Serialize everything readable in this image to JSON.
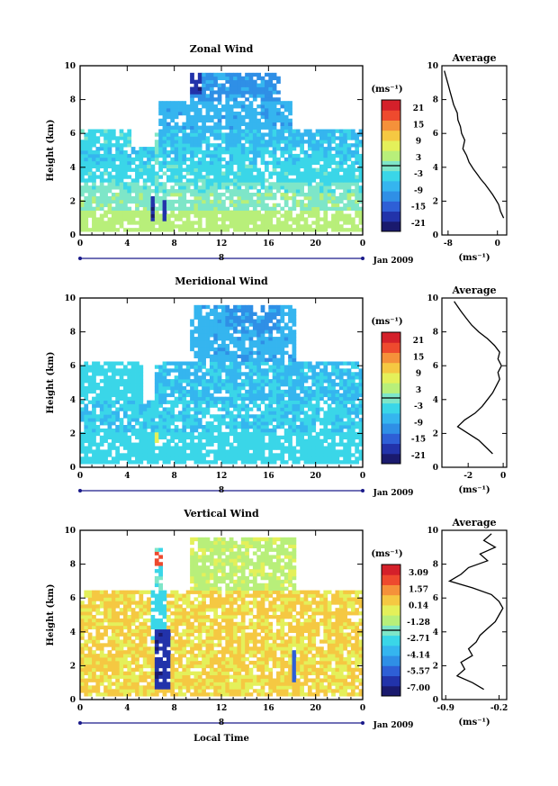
{
  "colors": {
    "bg": "#ffffff",
    "axis": "#000000",
    "contour": "#000000",
    "colormap": [
      "#1a1a6e",
      "#2233aa",
      "#2e5fd6",
      "#2f8fe6",
      "#35b5ef",
      "#3ad6e8",
      "#7ee6c8",
      "#b8ef7a",
      "#e4f05a",
      "#f5c842",
      "#f5913a",
      "#ee4a2e",
      "#d4202a"
    ]
  },
  "chart_data": [
    {
      "type": "heatmap",
      "title": "Zonal Wind",
      "ylabel": "Height (km)",
      "xlabel": "",
      "x_ticks": [
        "0",
        "4",
        "8",
        "12",
        "16",
        "20",
        "0"
      ],
      "xlim": [
        0,
        24
      ],
      "y_ticks": [
        "0",
        "2",
        "4",
        "6",
        "8",
        "10"
      ],
      "ylim": [
        0,
        10
      ],
      "date_tick": "8",
      "date_label": "Jan 2009",
      "colorbar": {
        "unit": "(ms⁻¹)",
        "ticks": [
          "21",
          "15",
          "9",
          "3",
          "-3",
          "-9",
          "-15",
          "-21"
        ],
        "range": [
          -24,
          24
        ]
      },
      "field": {
        "cols": 72,
        "rows": 48,
        "regions": [
          {
            "x": [
              0,
              24
            ],
            "y": [
              0.3,
              1.4
            ],
            "v": 4
          },
          {
            "x": [
              0,
              24
            ],
            "y": [
              1.4,
              2.6
            ],
            "v": 1
          },
          {
            "x": [
              0,
              24
            ],
            "y": [
              2.6,
              3.2
            ],
            "v": -1
          },
          {
            "x": [
              0,
              24
            ],
            "y": [
              3.2,
              4.2
            ],
            "v": -3
          },
          {
            "x": [
              0,
              24
            ],
            "y": [
              4.2,
              5.3
            ],
            "v": -5
          },
          {
            "x": [
              0,
              4.5
            ],
            "y": [
              5.3,
              6.3
            ],
            "v": -3
          },
          {
            "x": [
              6.5,
              24
            ],
            "y": [
              5.3,
              6.3
            ],
            "v": -6
          },
          {
            "x": [
              6.8,
              18
            ],
            "y": [
              6.3,
              8.0
            ],
            "v": -8
          },
          {
            "x": [
              9.5,
              17
            ],
            "y": [
              8.0,
              9.6
            ],
            "v": -10
          },
          {
            "x": [
              9.3,
              10.2
            ],
            "y": [
              8.4,
              9.6
            ],
            "v": -19
          },
          {
            "x": [
              6.0,
              6.5
            ],
            "y": [
              0.8,
              2.4
            ],
            "v": -20
          },
          {
            "x": [
              7.0,
              7.4
            ],
            "y": [
              0.8,
              2.0
            ],
            "v": -18
          },
          {
            "x": [
              6.2,
              6.8
            ],
            "y": [
              2.4,
              6.0
            ],
            "v": -1
          }
        ]
      },
      "profile": {
        "title": "Average",
        "unit": "(ms⁻¹)",
        "x_ticks": [
          "-8",
          "0"
        ],
        "xlim": [
          -9,
          1.5
        ],
        "ylim": [
          0,
          10
        ],
        "x": [
          1.0,
          0.5,
          0.2,
          -0.3,
          -0.8,
          -1.4,
          -2.0,
          -2.7,
          -3.3,
          -3.9,
          -4.6,
          -5.0,
          -5.6,
          -5.3,
          -5.8,
          -6.0,
          -6.4,
          -6.5,
          -7.1,
          -7.4,
          -7.7,
          -8.0,
          -8.3,
          -8.6
        ],
        "y": [
          1.0,
          1.4,
          1.8,
          2.1,
          2.4,
          2.7,
          3.0,
          3.3,
          3.6,
          3.9,
          4.3,
          4.7,
          5.1,
          5.6,
          6.0,
          6.4,
          6.8,
          7.2,
          7.7,
          8.1,
          8.5,
          8.9,
          9.3,
          9.7
        ]
      }
    },
    {
      "type": "heatmap",
      "title": "Meridional Wind",
      "ylabel": "Height (km)",
      "xlabel": "",
      "x_ticks": [
        "0",
        "4",
        "8",
        "12",
        "16",
        "20",
        "0"
      ],
      "xlim": [
        0,
        24
      ],
      "y_ticks": [
        "0",
        "2",
        "4",
        "6",
        "8",
        "10"
      ],
      "ylim": [
        0,
        10
      ],
      "date_tick": "8",
      "date_label": "Jan 2009",
      "colorbar": {
        "unit": "(ms⁻¹)",
        "ticks": [
          "21",
          "15",
          "9",
          "3",
          "-3",
          "-9",
          "-15",
          "-21"
        ],
        "range": [
          -24,
          24
        ]
      },
      "field": {
        "cols": 72,
        "rows": 48,
        "regions": [
          {
            "x": [
              0,
              24
            ],
            "y": [
              0.3,
              2.0
            ],
            "v": -4
          },
          {
            "x": [
              0,
              24
            ],
            "y": [
              2.0,
              4.0
            ],
            "v": -5
          },
          {
            "x": [
              0,
              5.5
            ],
            "y": [
              4.0,
              6.2
            ],
            "v": -4
          },
          {
            "x": [
              6.2,
              24
            ],
            "y": [
              4.0,
              6.2
            ],
            "v": -6
          },
          {
            "x": [
              9.5,
              18.5
            ],
            "y": [
              6.2,
              9.6
            ],
            "v": -8
          },
          {
            "x": [
              12.5,
              17.0
            ],
            "y": [
              8.0,
              9.6
            ],
            "v": -10
          },
          {
            "x": [
              6.3,
              6.8
            ],
            "y": [
              1.5,
              2.0
            ],
            "v": 8
          }
        ]
      },
      "profile": {
        "title": "Average",
        "unit": "(ms⁻¹)",
        "x_ticks": [
          "-2",
          "0"
        ],
        "xlim": [
          -3.5,
          0.2
        ],
        "ylim": [
          0,
          10
        ],
        "x": [
          -0.6,
          -1.0,
          -1.4,
          -2.0,
          -2.6,
          -2.2,
          -1.6,
          -1.2,
          -0.9,
          -0.6,
          -0.4,
          -0.2,
          -0.3,
          -0.1,
          -0.3,
          -0.2,
          -0.5,
          -0.9,
          -1.4,
          -1.8,
          -2.1,
          -2.4,
          -2.6,
          -2.8
        ],
        "y": [
          0.8,
          1.2,
          1.6,
          2.0,
          2.4,
          2.8,
          3.2,
          3.6,
          4.0,
          4.4,
          4.8,
          5.2,
          5.6,
          6.0,
          6.4,
          6.8,
          7.2,
          7.6,
          8.0,
          8.4,
          8.8,
          9.2,
          9.5,
          9.8
        ]
      }
    },
    {
      "type": "heatmap",
      "title": "Vertical Wind",
      "ylabel": "Height (km)",
      "xlabel": "Local Time",
      "x_ticks": [
        "0",
        "4",
        "8",
        "12",
        "16",
        "20",
        "0"
      ],
      "xlim": [
        0,
        24
      ],
      "y_ticks": [
        "0",
        "2",
        "4",
        "6",
        "8",
        "10"
      ],
      "ylim": [
        0,
        10
      ],
      "date_tick": "8",
      "date_label": "Jan 2009",
      "colorbar": {
        "unit": "(ms⁻¹)",
        "ticks": [
          "3.09",
          "1.57",
          "0.14",
          "-1.28",
          "-2.71",
          "-4.14",
          "-5.57",
          "-7.00"
        ],
        "range": [
          -8.0,
          4.0
        ]
      },
      "field": {
        "cols": 72,
        "rows": 48,
        "regions": [
          {
            "x": [
              0,
              24
            ],
            "y": [
              0.3,
              6.4
            ],
            "v": 0.4
          },
          {
            "x": [
              9.5,
              18.5
            ],
            "y": [
              6.4,
              9.6
            ],
            "v": -0.8
          },
          {
            "x": [
              6.3,
              7.0
            ],
            "y": [
              6.4,
              9.0
            ],
            "v": -2.5
          },
          {
            "x": [
              6.0,
              7.4
            ],
            "y": [
              3.5,
              6.4
            ],
            "v": -3.0
          },
          {
            "x": [
              6.2,
              7.6
            ],
            "y": [
              0.6,
              4.2
            ],
            "v": -6.8
          },
          {
            "x": [
              18.0,
              18.4
            ],
            "y": [
              1.0,
              3.2
            ],
            "v": -5.6
          },
          {
            "x": [
              6.4,
              6.9
            ],
            "y": [
              8.0,
              8.8
            ],
            "v": 2.5
          }
        ]
      },
      "profile": {
        "title": "Average",
        "unit": "(ms⁻¹)",
        "x_ticks": [
          "-0.9",
          "-0.2"
        ],
        "xlim": [
          -0.95,
          -0.1
        ],
        "ylim": [
          0,
          10
        ],
        "x": [
          -0.4,
          -0.55,
          -0.75,
          -0.65,
          -0.7,
          -0.55,
          -0.6,
          -0.5,
          -0.45,
          -0.35,
          -0.25,
          -0.2,
          -0.15,
          -0.2,
          -0.3,
          -0.55,
          -0.85,
          -0.7,
          -0.6,
          -0.35,
          -0.45,
          -0.25,
          -0.4,
          -0.3
        ],
        "y": [
          0.6,
          1.0,
          1.4,
          1.8,
          2.2,
          2.6,
          3.0,
          3.4,
          3.8,
          4.2,
          4.6,
          5.0,
          5.4,
          5.8,
          6.2,
          6.6,
          7.0,
          7.4,
          7.8,
          8.2,
          8.6,
          9.0,
          9.4,
          9.8
        ]
      }
    }
  ]
}
